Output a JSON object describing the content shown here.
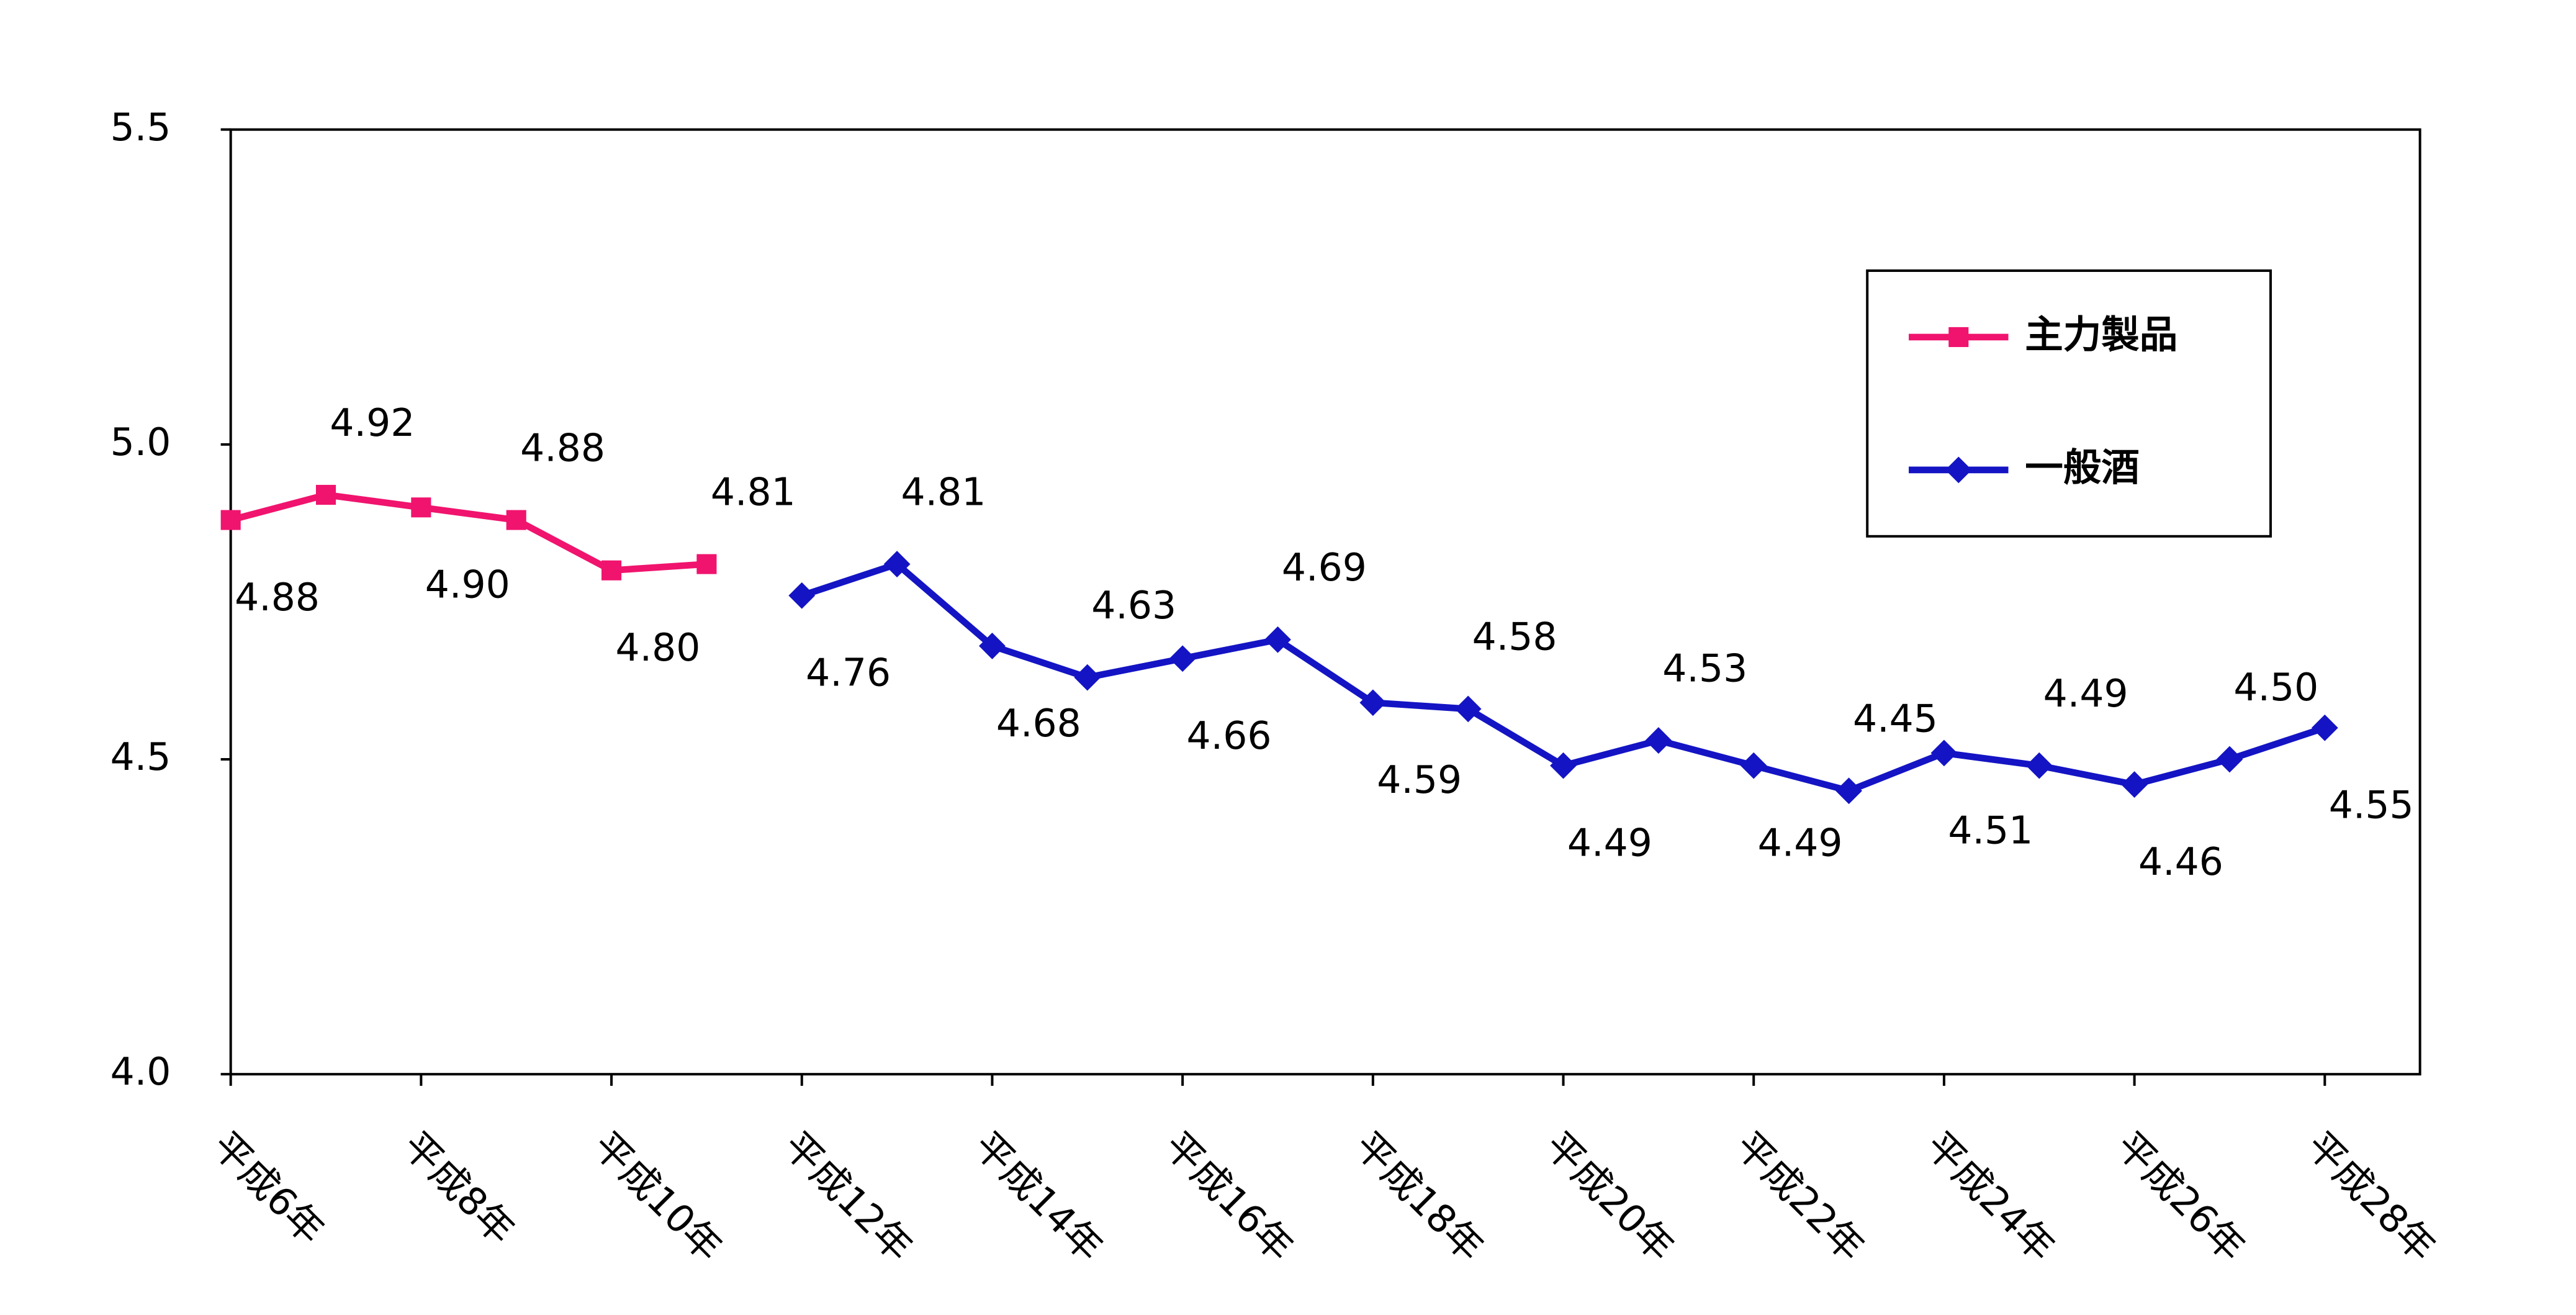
{
  "chart_data": {
    "type": "line",
    "categories": [
      "平成6年",
      null,
      "平成8年",
      null,
      "平成10年",
      null,
      "平成12年",
      null,
      "平成14年",
      null,
      "平成16年",
      null,
      "平成18年",
      null,
      "平成20年",
      null,
      "平成22年",
      null,
      "平成24年",
      null,
      "平成26年",
      null,
      "平成28年"
    ],
    "series": [
      {
        "name": "主力製品",
        "color": "#f0146e",
        "marker": "square",
        "values": [
          4.88,
          4.92,
          4.9,
          4.88,
          4.8,
          4.81,
          null,
          null,
          null,
          null,
          null,
          null,
          null,
          null,
          null,
          null,
          null,
          null,
          null,
          null,
          null,
          null,
          null
        ],
        "value_labels": [
          "4.88",
          "4.92",
          "4.90",
          "4.88",
          "4.80",
          "4.81",
          null,
          null,
          null,
          null,
          null,
          null,
          null,
          null,
          null,
          null,
          null,
          null,
          null,
          null,
          null,
          null,
          null
        ]
      },
      {
        "name": "一般酒",
        "color": "#1414c4",
        "marker": "diamond",
        "values": [
          null,
          null,
          null,
          null,
          null,
          null,
          4.76,
          4.81,
          4.68,
          4.63,
          4.66,
          4.69,
          4.59,
          4.58,
          4.49,
          4.53,
          4.49,
          4.45,
          4.51,
          4.49,
          4.46,
          4.5,
          4.55
        ],
        "value_labels": [
          null,
          null,
          null,
          null,
          null,
          null,
          "4.76",
          "4.81",
          "4.68",
          "4.63",
          "4.66",
          "4.69",
          "4.59",
          "4.58",
          "4.49",
          "4.53",
          "4.49",
          "4.45",
          "4.51",
          "4.49",
          "4.46",
          "4.50",
          "4.55"
        ]
      }
    ],
    "ylim": [
      4.0,
      5.5
    ],
    "yticks": [
      {
        "value": 4.0,
        "label": "4.0"
      },
      {
        "value": 4.5,
        "label": "4.5"
      },
      {
        "value": 5.0,
        "label": "5.0"
      },
      {
        "value": 5.5,
        "label": "5.5"
      }
    ],
    "grid": false,
    "legend": "upper right"
  }
}
